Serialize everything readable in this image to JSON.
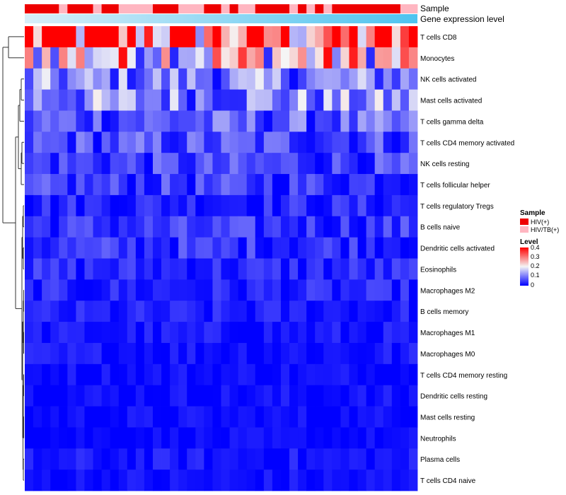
{
  "chart_data": {
    "type": "heatmap",
    "title": "",
    "annotation_tracks": [
      {
        "label": "Sample",
        "kind": "categorical"
      },
      {
        "label": "Gene expression level",
        "kind": "continuous"
      }
    ],
    "rows": [
      "T cells CD8",
      "Monocytes",
      "NK cells activated",
      "Mast cells activated",
      "T cells gamma delta",
      "T cells CD4 memory activated",
      "NK cells resting",
      "T cells follicular helper",
      "T cells regulatory  Tregs",
      "B cells naive",
      "Dendritic cells activated",
      "Eosinophils",
      "Macrophages M2",
      "B cells memory",
      "Macrophages M1",
      "Macrophages M0",
      "T cells CD4 memory resting",
      "Dendritic cells resting",
      "Mast cells resting",
      "Neutrophils",
      "Plasma cells",
      "T cells CD4 naive"
    ],
    "row_means": [
      0.33,
      0.22,
      0.1,
      0.11,
      0.07,
      0.06,
      0.05,
      0.045,
      0.03,
      0.04,
      0.04,
      0.03,
      0.025,
      0.02,
      0.015,
      0.015,
      0.01,
      0.01,
      0.008,
      0.005,
      0.015,
      0.01
    ],
    "n_columns": 46,
    "sample_groups": [
      "HIV(+)",
      "HIV/TB(+)"
    ],
    "legend": {
      "sample": {
        "title": "Sample",
        "entries": [
          {
            "label": "HIV(+)",
            "color": "#ee0000"
          },
          {
            "label": "HIV/TB(+)",
            "color": "#ffb6c1"
          }
        ]
      },
      "level": {
        "title": "Level",
        "ticks": [
          "0.4",
          "0.3",
          "0.2",
          "0.1",
          "0"
        ],
        "range": [
          0,
          0.4
        ],
        "colors": [
          "#0000ff",
          "#f5f5f5",
          "#ff0000"
        ]
      }
    },
    "dendrogram": "row clustering tree (left)",
    "colors": {
      "low": "#0000ff",
      "mid": "#f5f5f5",
      "high": "#ff0000",
      "expr_light": "#d8eef9",
      "expr_dark": "#4ec3ef"
    }
  }
}
